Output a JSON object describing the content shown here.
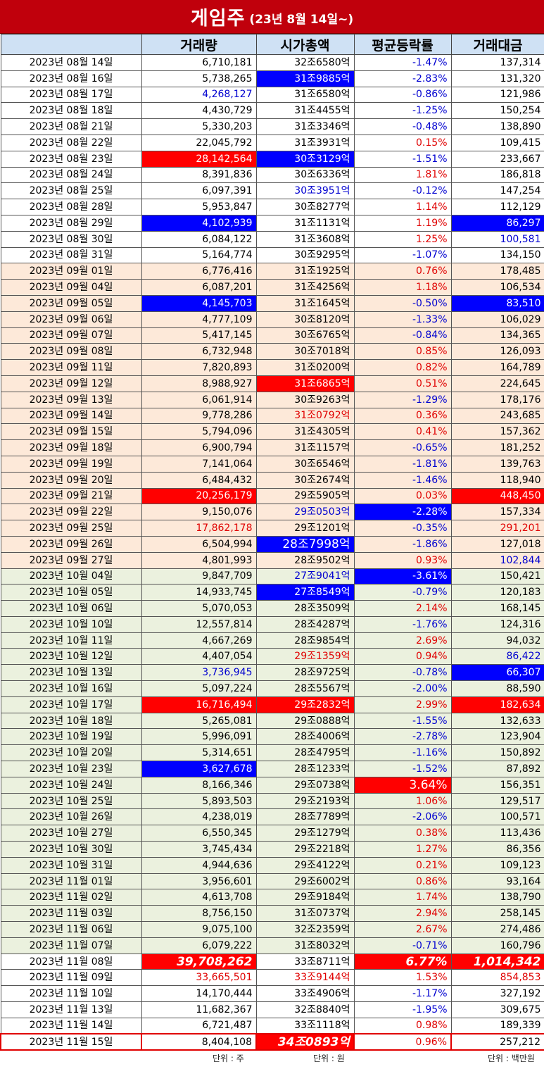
{
  "header": {
    "title_main": "게임주",
    "title_sub": "(23년 8월 14일~)"
  },
  "chart_data": {
    "type": "table",
    "columns": [
      "",
      "거래량",
      "시가총액",
      "평균등락률",
      "거래대금"
    ],
    "units": [
      "단위 : 주",
      "단위 : 원",
      "단위 : 백만원"
    ],
    "rows": [
      {
        "date": "2023년 08월 14일",
        "vol": "6,710,181",
        "cap": "32조6580억",
        "chg": "-1.47%",
        "amt": "137,314"
      },
      {
        "date": "2023년 08월 16일",
        "vol": "5,738,265",
        "cap": "31조9885억",
        "chg": "-2.83%",
        "amt": "131,320"
      },
      {
        "date": "2023년 08월 17일",
        "vol": "4,268,127",
        "cap": "31조6580억",
        "chg": "-0.86%",
        "amt": "121,986"
      },
      {
        "date": "2023년 08월 18일",
        "vol": "4,430,729",
        "cap": "31조4455억",
        "chg": "-1.25%",
        "amt": "150,254"
      },
      {
        "date": "2023년 08월 21일",
        "vol": "5,330,203",
        "cap": "31조3346억",
        "chg": "-0.48%",
        "amt": "138,890"
      },
      {
        "date": "2023년 08월 22일",
        "vol": "22,045,792",
        "cap": "31조3931억",
        "chg": "0.15%",
        "amt": "109,415"
      },
      {
        "date": "2023년 08월 23일",
        "vol": "28,142,564",
        "cap": "30조3129억",
        "chg": "-1.51%",
        "amt": "233,667"
      },
      {
        "date": "2023년 08월 24일",
        "vol": "8,391,836",
        "cap": "30조6336억",
        "chg": "1.81%",
        "amt": "186,818"
      },
      {
        "date": "2023년 08월 25일",
        "vol": "6,097,391",
        "cap": "30조3951억",
        "chg": "-0.12%",
        "amt": "147,254"
      },
      {
        "date": "2023년 08월 28일",
        "vol": "5,953,847",
        "cap": "30조8277억",
        "chg": "1.14%",
        "amt": "112,129"
      },
      {
        "date": "2023년 08월 29일",
        "vol": "4,102,939",
        "cap": "31조1131억",
        "chg": "1.19%",
        "amt": "86,297"
      },
      {
        "date": "2023년 08월 30일",
        "vol": "6,084,122",
        "cap": "31조3608억",
        "chg": "1.25%",
        "amt": "100,581"
      },
      {
        "date": "2023년 08월 31일",
        "vol": "5,164,774",
        "cap": "30조9295억",
        "chg": "-1.07%",
        "amt": "134,150"
      },
      {
        "date": "2023년 09월 01일",
        "vol": "6,776,416",
        "cap": "31조1925억",
        "chg": "0.76%",
        "amt": "178,485"
      },
      {
        "date": "2023년 09월 04일",
        "vol": "6,087,201",
        "cap": "31조4256억",
        "chg": "1.18%",
        "amt": "106,534"
      },
      {
        "date": "2023년 09월 05일",
        "vol": "4,145,703",
        "cap": "31조1645억",
        "chg": "-0.50%",
        "amt": "83,510"
      },
      {
        "date": "2023년 09월 06일",
        "vol": "4,777,109",
        "cap": "30조8120억",
        "chg": "-1.33%",
        "amt": "106,029"
      },
      {
        "date": "2023년 09월 07일",
        "vol": "5,417,145",
        "cap": "30조6765억",
        "chg": "-0.84%",
        "amt": "134,365"
      },
      {
        "date": "2023년 09월 08일",
        "vol": "6,732,948",
        "cap": "30조7018억",
        "chg": "0.85%",
        "amt": "126,093"
      },
      {
        "date": "2023년 09월 11일",
        "vol": "7,820,893",
        "cap": "31조0200억",
        "chg": "0.82%",
        "amt": "164,789"
      },
      {
        "date": "2023년 09월 12일",
        "vol": "8,988,927",
        "cap": "31조6865억",
        "chg": "0.51%",
        "amt": "224,645"
      },
      {
        "date": "2023년 09월 13일",
        "vol": "6,061,914",
        "cap": "30조9263억",
        "chg": "-1.29%",
        "amt": "178,176"
      },
      {
        "date": "2023년 09월 14일",
        "vol": "9,778,286",
        "cap": "31조0792억",
        "chg": "0.36%",
        "amt": "243,685"
      },
      {
        "date": "2023년 09월 15일",
        "vol": "5,794,096",
        "cap": "31조4305억",
        "chg": "0.41%",
        "amt": "157,362"
      },
      {
        "date": "2023년 09월 18일",
        "vol": "6,900,794",
        "cap": "31조1157억",
        "chg": "-0.65%",
        "amt": "181,252"
      },
      {
        "date": "2023년 09월 19일",
        "vol": "7,141,064",
        "cap": "30조6546억",
        "chg": "-1.81%",
        "amt": "139,763"
      },
      {
        "date": "2023년 09월 20일",
        "vol": "6,484,432",
        "cap": "30조2674억",
        "chg": "-1.46%",
        "amt": "118,940"
      },
      {
        "date": "2023년 09월 21일",
        "vol": "20,256,179",
        "cap": "29조5905억",
        "chg": "0.03%",
        "amt": "448,450"
      },
      {
        "date": "2023년 09월 22일",
        "vol": "9,150,076",
        "cap": "29조0503억",
        "chg": "-2.28%",
        "amt": "157,334"
      },
      {
        "date": "2023년 09월 25일",
        "vol": "17,862,178",
        "cap": "29조1201억",
        "chg": "-0.35%",
        "amt": "291,201"
      },
      {
        "date": "2023년 09월 26일",
        "vol": "6,504,994",
        "cap": "28조7998억",
        "chg": "-1.86%",
        "amt": "127,018"
      },
      {
        "date": "2023년 09월 27일",
        "vol": "4,801,993",
        "cap": "28조9502억",
        "chg": "0.93%",
        "amt": "102,844"
      },
      {
        "date": "2023년 10월 04일",
        "vol": "9,847,709",
        "cap": "27조9041억",
        "chg": "-3.61%",
        "amt": "150,421"
      },
      {
        "date": "2023년 10월 05일",
        "vol": "14,933,745",
        "cap": "27조8549억",
        "chg": "-0.79%",
        "amt": "120,183"
      },
      {
        "date": "2023년 10월 06일",
        "vol": "5,070,053",
        "cap": "28조3509억",
        "chg": "2.14%",
        "amt": "168,145"
      },
      {
        "date": "2023년 10월 10일",
        "vol": "12,557,814",
        "cap": "28조4287억",
        "chg": "-1.76%",
        "amt": "124,316"
      },
      {
        "date": "2023년 10월 11일",
        "vol": "4,667,269",
        "cap": "28조9854억",
        "chg": "2.69%",
        "amt": "94,032"
      },
      {
        "date": "2023년 10월 12일",
        "vol": "4,407,054",
        "cap": "29조1359억",
        "chg": "0.94%",
        "amt": "86,422"
      },
      {
        "date": "2023년 10월 13일",
        "vol": "3,736,945",
        "cap": "28조9725억",
        "chg": "-0.78%",
        "amt": "66,307"
      },
      {
        "date": "2023년 10월 16일",
        "vol": "5,097,224",
        "cap": "28조5567억",
        "chg": "-2.00%",
        "amt": "88,590"
      },
      {
        "date": "2023년 10월 17일",
        "vol": "16,716,494",
        "cap": "29조2832억",
        "chg": "2.99%",
        "amt": "182,634"
      },
      {
        "date": "2023년 10월 18일",
        "vol": "5,265,081",
        "cap": "29조0888억",
        "chg": "-1.55%",
        "amt": "132,633"
      },
      {
        "date": "2023년 10월 19일",
        "vol": "5,996,091",
        "cap": "28조4006억",
        "chg": "-2.78%",
        "amt": "123,904"
      },
      {
        "date": "2023년 10월 20일",
        "vol": "5,314,651",
        "cap": "28조4795억",
        "chg": "-1.16%",
        "amt": "150,892"
      },
      {
        "date": "2023년 10월 23일",
        "vol": "3,627,678",
        "cap": "28조1233억",
        "chg": "-1.52%",
        "amt": "87,892"
      },
      {
        "date": "2023년 10월 24일",
        "vol": "8,166,346",
        "cap": "29조0738억",
        "chg": "3.64%",
        "amt": "156,351"
      },
      {
        "date": "2023년 10월 25일",
        "vol": "5,893,503",
        "cap": "29조2193억",
        "chg": "1.06%",
        "amt": "129,517"
      },
      {
        "date": "2023년 10월 26일",
        "vol": "4,238,019",
        "cap": "28조7789억",
        "chg": "-2.06%",
        "amt": "100,571"
      },
      {
        "date": "2023년 10월 27일",
        "vol": "6,550,345",
        "cap": "29조1279억",
        "chg": "0.38%",
        "amt": "113,436"
      },
      {
        "date": "2023년 10월 30일",
        "vol": "3,745,434",
        "cap": "29조2218억",
        "chg": "1.27%",
        "amt": "86,356"
      },
      {
        "date": "2023년 10월 31일",
        "vol": "4,944,636",
        "cap": "29조4122억",
        "chg": "0.21%",
        "amt": "109,123"
      },
      {
        "date": "2023년 11월 01일",
        "vol": "3,956,601",
        "cap": "29조6002억",
        "chg": "0.86%",
        "amt": "93,164"
      },
      {
        "date": "2023년 11월 02일",
        "vol": "4,613,708",
        "cap": "29조9184억",
        "chg": "1.74%",
        "amt": "138,790"
      },
      {
        "date": "2023년 11월 03일",
        "vol": "8,756,150",
        "cap": "31조0737억",
        "chg": "2.94%",
        "amt": "258,145"
      },
      {
        "date": "2023년 11월 06일",
        "vol": "9,075,100",
        "cap": "32조2359억",
        "chg": "2.67%",
        "amt": "274,486"
      },
      {
        "date": "2023년 11월 07일",
        "vol": "6,079,222",
        "cap": "31조8032억",
        "chg": "-0.71%",
        "amt": "160,796"
      },
      {
        "date": "2023년 11월 08일",
        "vol": "39,708,262",
        "cap": "33조8711억",
        "chg": "6.77%",
        "amt": "1,014,342"
      },
      {
        "date": "2023년 11월 09일",
        "vol": "33,665,501",
        "cap": "33조9144억",
        "chg": "1.53%",
        "amt": "854,853"
      },
      {
        "date": "2023년 11월 10일",
        "vol": "14,170,444",
        "cap": "33조4906억",
        "chg": "-1.17%",
        "amt": "327,192"
      },
      {
        "date": "2023년 11월 13일",
        "vol": "11,682,367",
        "cap": "32조8840억",
        "chg": "-1.95%",
        "amt": "309,675"
      },
      {
        "date": "2023년 11월 14일",
        "vol": "6,721,487",
        "cap": "33조1118억",
        "chg": "0.98%",
        "amt": "189,339"
      },
      {
        "date": "2023년 11월 15일",
        "vol": "8,404,108",
        "cap": "34조0893억",
        "chg": "0.96%",
        "amt": "257,212"
      }
    ]
  },
  "colors": {
    "title_bg": "#c0000c",
    "header_bg": "#cfe1f4",
    "red": "#ff0000",
    "blue": "#0000ff",
    "red_text": "#e00000",
    "blue_text": "#0000d0",
    "sep_band": "#fde9d9",
    "oct_band": "#ebf1de"
  },
  "styles": {
    "bands": [
      0,
      0,
      0,
      0,
      0,
      0,
      0,
      0,
      0,
      0,
      0,
      0,
      0,
      1,
      1,
      1,
      1,
      1,
      1,
      1,
      1,
      1,
      1,
      1,
      1,
      1,
      1,
      1,
      1,
      1,
      1,
      1,
      2,
      2,
      2,
      2,
      2,
      2,
      2,
      2,
      2,
      2,
      2,
      2,
      2,
      2,
      2,
      2,
      2,
      2,
      2,
      2,
      2,
      2,
      2,
      2,
      3,
      3,
      3,
      3,
      3,
      3
    ],
    "cells": {
      "1": {
        "cap": "hb"
      },
      "2": {
        "vol": "tb"
      },
      "6": {
        "vol": "hr",
        "cap": "hb"
      },
      "8": {
        "cap": "tb"
      },
      "10": {
        "vol": "hb",
        "amt": "hb"
      },
      "11": {
        "amt": "tb"
      },
      "15": {
        "vol": "hb",
        "amt": "hb"
      },
      "20": {
        "cap": "hr"
      },
      "22": {
        "cap": "tr"
      },
      "27": {
        "vol": "hr",
        "amt": "hr"
      },
      "28": {
        "cap": "tb",
        "chg": "hb"
      },
      "29": {
        "vol": "tr",
        "amt": "tr"
      },
      "30": {
        "cap": "hb big"
      },
      "31": {
        "amt": "tb"
      },
      "32": {
        "cap": "tb",
        "chg": "hb"
      },
      "33": {
        "cap": "hb"
      },
      "37": {
        "cap": "tr",
        "amt": "tb"
      },
      "38": {
        "vol": "tb",
        "amt": "hb"
      },
      "40": {
        "vol": "hr",
        "cap": "hr",
        "amt": "hr"
      },
      "44": {
        "vol": "hb"
      },
      "45": {
        "chg": "hr big"
      },
      "56": {
        "vol": "hr bigi",
        "chg": "hr bigi",
        "amt": "hr bigi"
      },
      "57": {
        "vol": "tr",
        "cap": "tr",
        "amt": "tr"
      },
      "61": {
        "cap": "hr bigi"
      }
    }
  }
}
